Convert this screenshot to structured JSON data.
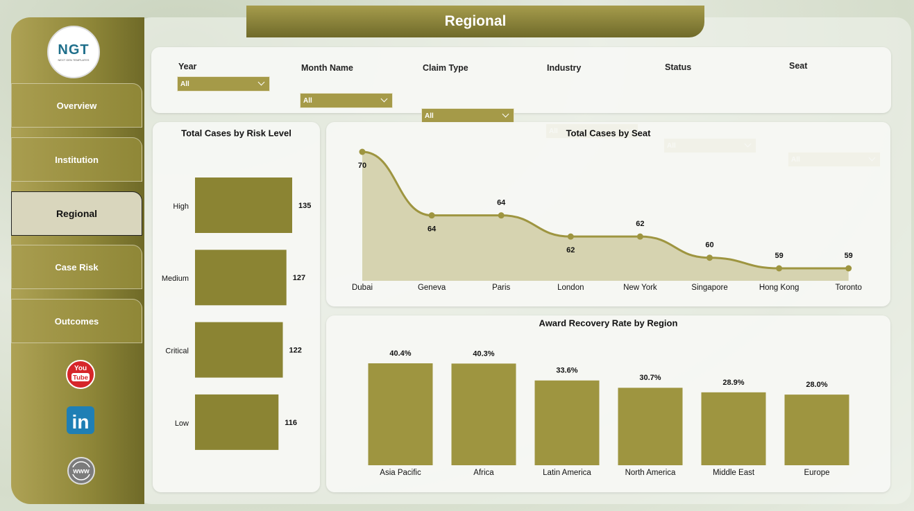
{
  "header": {
    "title": "Regional"
  },
  "logo": {
    "text": "NGT",
    "tagline": "NEXT GEN TEMPLATES"
  },
  "nav": [
    "Overview",
    "Institution",
    "Regional",
    "Case Risk",
    "Outcomes"
  ],
  "social": {
    "youtube": [
      "You",
      "Tube"
    ],
    "linkedin": "in",
    "web": "www"
  },
  "filters": [
    {
      "label": "Year",
      "value": "All"
    },
    {
      "label": "Month Name",
      "value": "All"
    },
    {
      "label": "Claim Type",
      "value": "All"
    },
    {
      "label": "Industry",
      "value": "All"
    },
    {
      "label": "Status",
      "value": "All"
    },
    {
      "label": "Seat",
      "value": "All"
    }
  ],
  "chart_data": [
    {
      "type": "hbar",
      "title": "Total Cases by Risk Level",
      "categories": [
        "High",
        "Medium",
        "Critical",
        "Low"
      ],
      "values": [
        135,
        127,
        122,
        116
      ],
      "color": "#8b8433"
    },
    {
      "type": "line",
      "title": "Total Cases by Seat",
      "categories": [
        "Dubai",
        "Geneva",
        "Paris",
        "London",
        "New York",
        "Singapore",
        "Hong Kong",
        "Toronto"
      ],
      "values": [
        70,
        64,
        64,
        62,
        62,
        60,
        59,
        59
      ],
      "color": "#9e9540",
      "area_color": "#d3cea8"
    },
    {
      "type": "bar",
      "title": "Award Recovery Rate by Region",
      "categories": [
        "Asia Pacific",
        "Africa",
        "Latin America",
        "North America",
        "Middle East",
        "Europe"
      ],
      "values": [
        40.4,
        40.3,
        33.6,
        30.7,
        28.9,
        28.0
      ],
      "value_labels": [
        "40.4%",
        "40.3%",
        "33.6%",
        "30.7%",
        "28.9%",
        "28.0%"
      ],
      "color": "#9e9540"
    }
  ]
}
